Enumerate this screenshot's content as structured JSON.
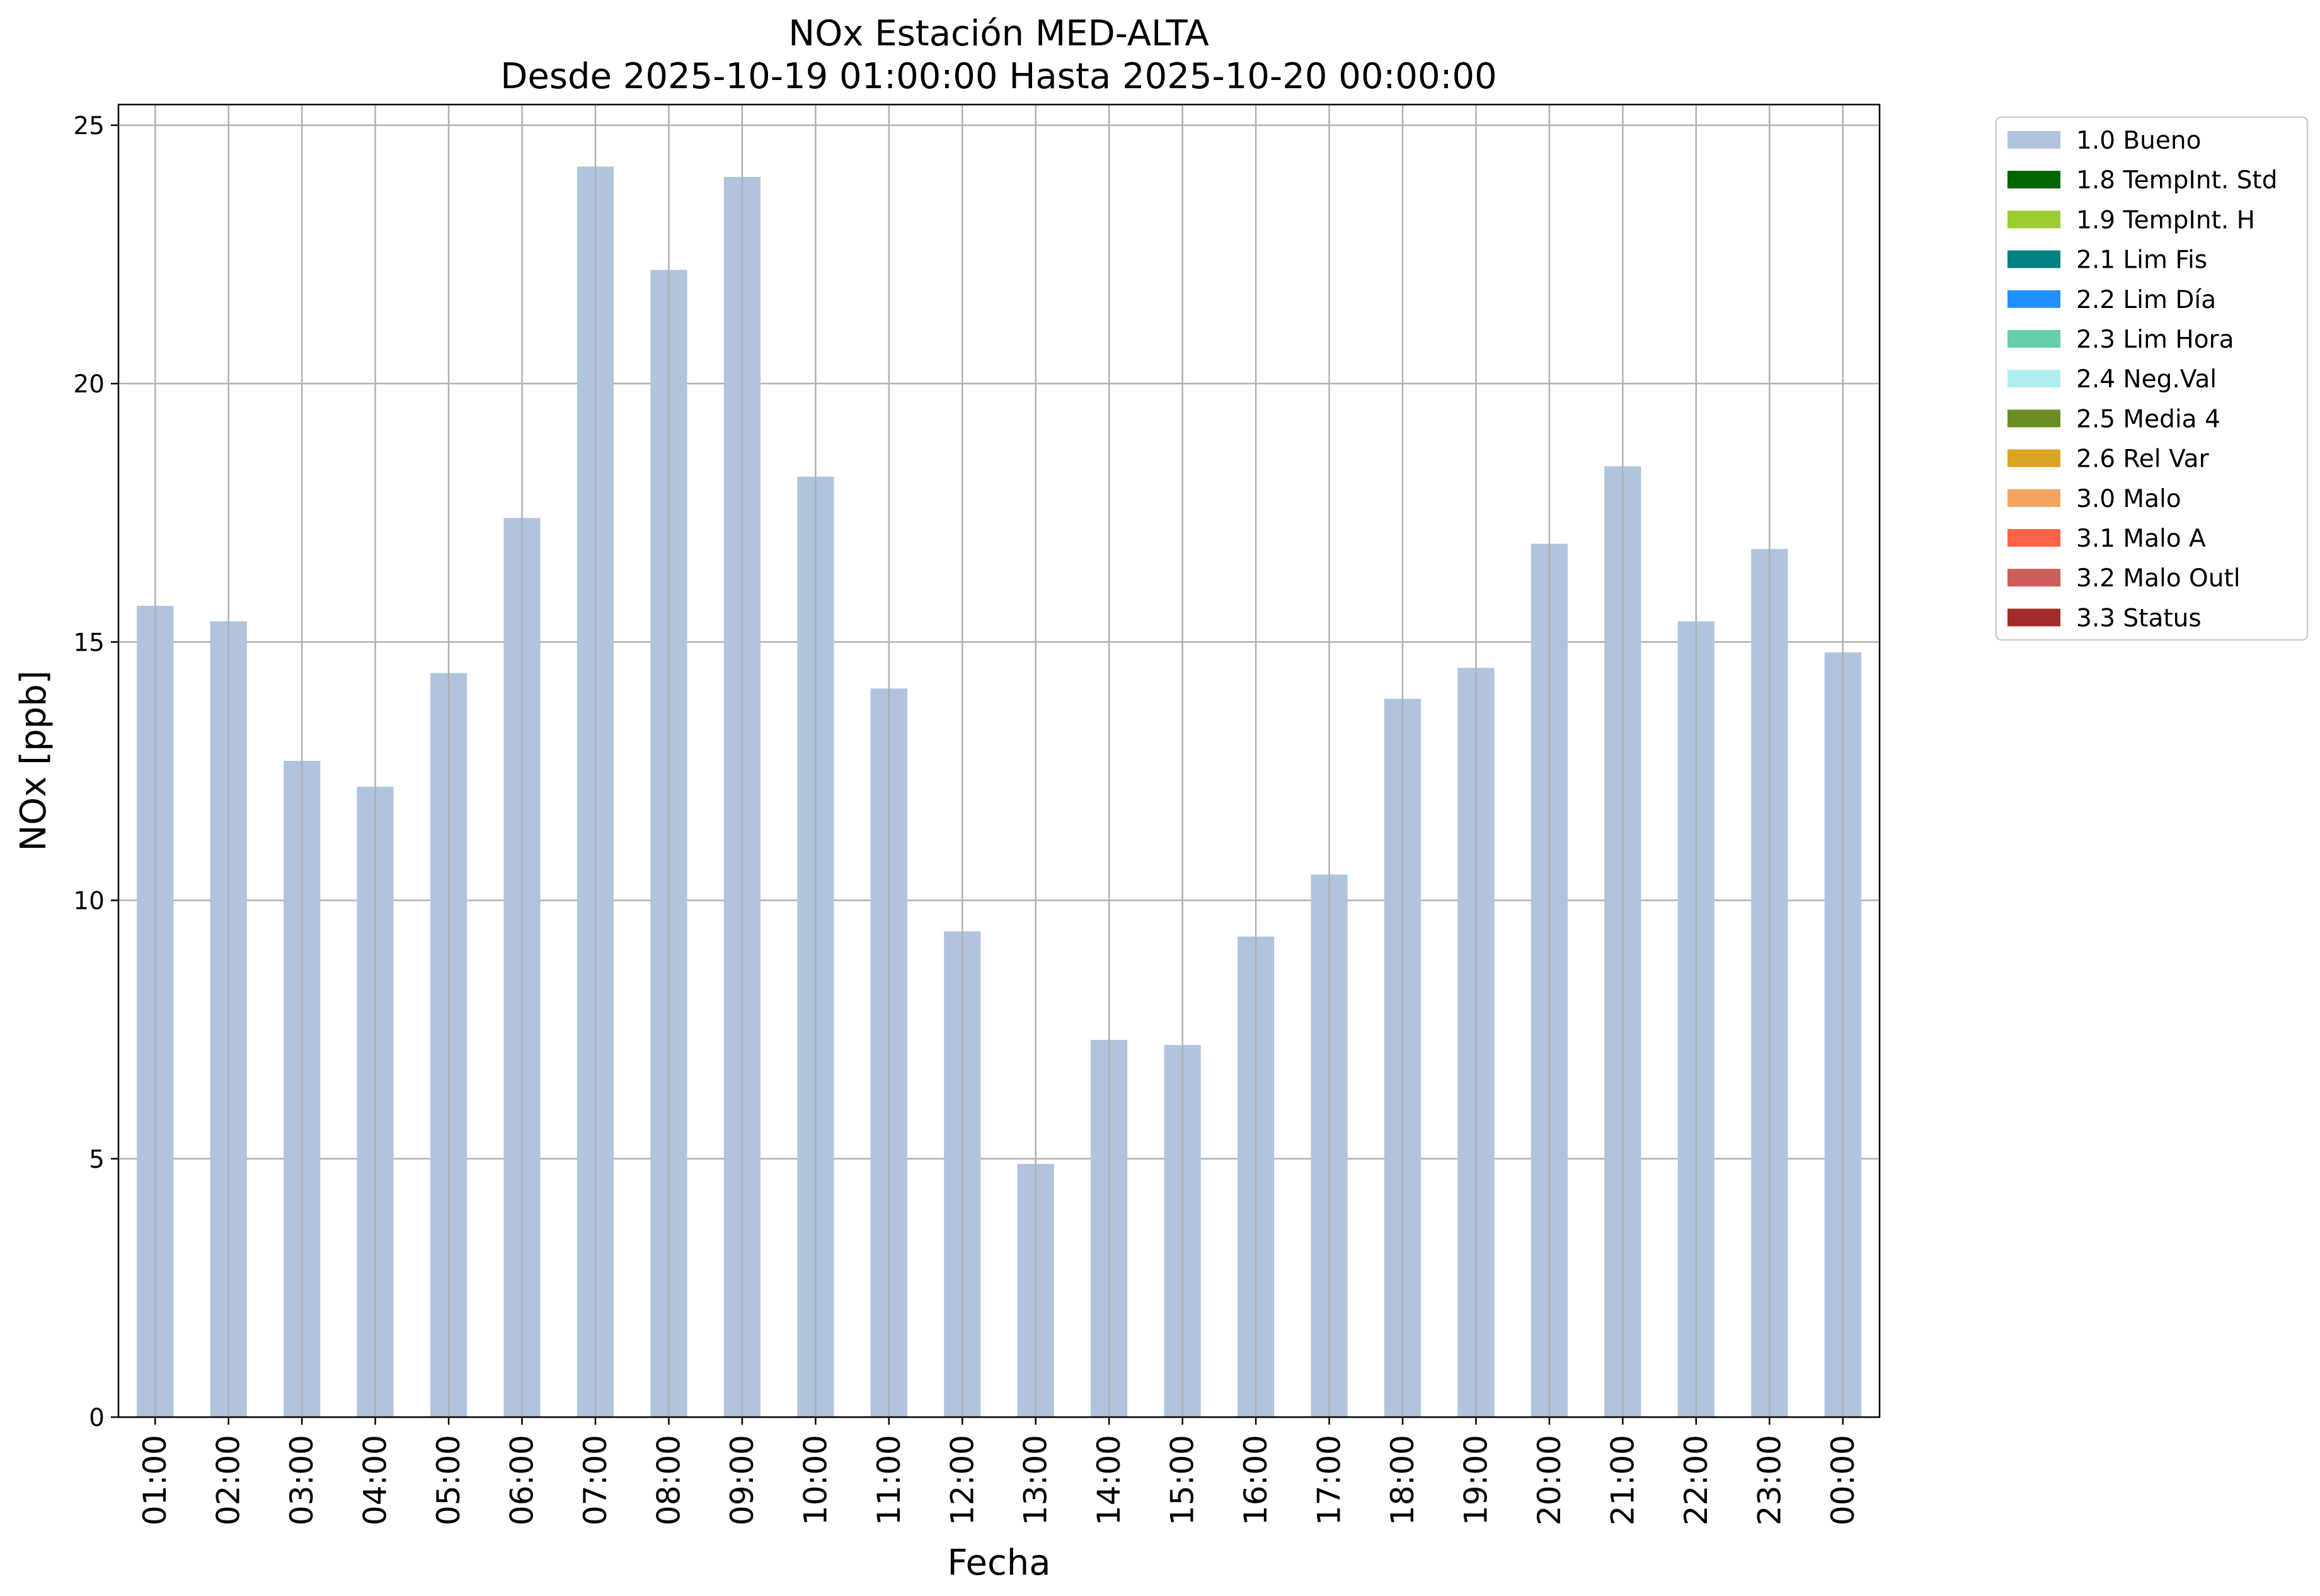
{
  "chart_data": {
    "type": "bar",
    "title": "NOx Estación MED-ALTA",
    "subtitle": "Desde 2025-10-19 01:00:00 Hasta 2025-10-20 00:00:00",
    "xlabel": "Fecha",
    "ylabel": "NOx [ppb]",
    "ylim": [
      0,
      25.4
    ],
    "yticks": [
      "0",
      "5",
      "10",
      "15",
      "20",
      "25"
    ],
    "grid": true,
    "legend_position": "outside-top-right",
    "categories": [
      "01:00",
      "02:00",
      "03:00",
      "04:00",
      "05:00",
      "06:00",
      "07:00",
      "08:00",
      "09:00",
      "10:00",
      "11:00",
      "12:00",
      "13:00",
      "14:00",
      "15:00",
      "16:00",
      "17:00",
      "18:00",
      "19:00",
      "20:00",
      "21:00",
      "22:00",
      "23:00",
      "00:00"
    ],
    "series": [
      {
        "name": "1.0 Bueno",
        "color": "#b0c4de",
        "values": [
          15.7,
          15.4,
          12.7,
          12.2,
          14.4,
          17.4,
          24.2,
          22.2,
          24.0,
          18.2,
          14.1,
          9.4,
          4.9,
          7.3,
          7.2,
          9.3,
          10.5,
          13.9,
          14.5,
          16.9,
          18.4,
          15.4,
          16.8,
          14.8
        ]
      }
    ],
    "legend": [
      {
        "label": "1.0 Bueno",
        "color": "#b0c4de"
      },
      {
        "label": "1.8 TempInt. Std",
        "color": "#006400"
      },
      {
        "label": "1.9 TempInt. H",
        "color": "#9acd32"
      },
      {
        "label": "2.1 Lim Fis",
        "color": "#008080"
      },
      {
        "label": "2.2 Lim Día",
        "color": "#1e90ff"
      },
      {
        "label": "2.3 Lim Hora",
        "color": "#66cdaa"
      },
      {
        "label": "2.4 Neg.Val",
        "color": "#afeeee"
      },
      {
        "label": "2.5 Media 4",
        "color": "#6b8e23"
      },
      {
        "label": "2.6 Rel Var",
        "color": "#daa520"
      },
      {
        "label": "3.0 Malo",
        "color": "#f4a460"
      },
      {
        "label": "3.1 Malo A",
        "color": "#ff6347"
      },
      {
        "label": "3.2 Malo Outl",
        "color": "#cd5c5c"
      },
      {
        "label": "3.3 Status",
        "color": "#a52a2a"
      }
    ]
  }
}
